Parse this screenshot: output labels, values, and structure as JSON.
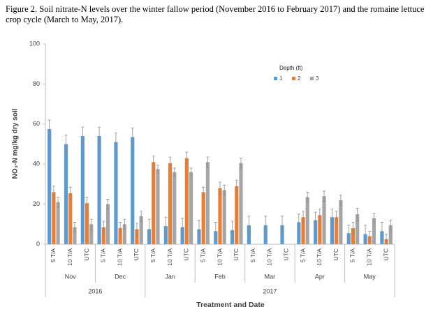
{
  "chart_data": {
    "type": "bar",
    "title": "Figure 2. Soil nitrate-N levels over the winter fallow period (November 2016 to February 2017) and the romaine lettuce crop cycle (March to May, 2017).",
    "x_label": "Treatment and Date",
    "y_label": "NO₃-N mg/kg dry soil",
    "legend_title": "Depth (ft)",
    "years": [
      {
        "label": "2016",
        "months": [
          {
            "label": "Nov",
            "categories": [
              "5 T/A",
              "10 T/A",
              "UTC"
            ]
          },
          {
            "label": "Dec",
            "categories": [
              "5 T/A",
              "10 T/A",
              "UTC"
            ]
          }
        ]
      },
      {
        "label": "2017",
        "months": [
          {
            "label": "Jan",
            "categories": [
              "5 T/A",
              "10 T/A",
              "UTC"
            ]
          },
          {
            "label": "Feb",
            "categories": [
              "5 T/A",
              "10 T/A",
              "UTC"
            ]
          },
          {
            "label": "Mar",
            "categories": [
              "5 T/A",
              "10 T/A",
              "UTC"
            ]
          },
          {
            "label": "Apr",
            "categories": [
              "5 T/A",
              "10 T/A",
              "UTC"
            ]
          },
          {
            "label": "May",
            "categories": [
              "5 T/A",
              "10 T/A",
              "UTC"
            ]
          }
        ]
      }
    ],
    "series": [
      {
        "name": "1",
        "color": "#5b9bd5",
        "values": [
          57.5,
          50,
          54,
          54,
          51,
          53.5,
          7.5,
          9,
          8.5,
          7.5,
          6.5,
          7,
          9.5,
          9.5,
          9.5,
          11,
          12,
          13.5,
          5.5,
          5,
          6.5
        ],
        "errors": [
          4.5,
          4.5,
          4.5,
          4.5,
          4.5,
          4.5,
          5,
          4.5,
          4.5,
          4.5,
          4.5,
          4.5,
          4.5,
          4.5,
          4.5,
          4,
          4,
          4,
          4,
          4.5,
          4.5
        ]
      },
      {
        "name": "2",
        "color": "#ed7d31",
        "values": [
          26,
          25.5,
          20.5,
          8.5,
          8,
          7.5,
          41,
          40.5,
          43,
          26,
          28,
          29,
          null,
          null,
          null,
          13.5,
          14.5,
          13.5,
          8,
          4,
          2.5
        ],
        "errors": [
          3,
          3,
          3,
          3,
          3,
          3,
          3,
          3,
          3,
          2.5,
          3,
          3,
          null,
          null,
          null,
          3,
          3,
          3,
          3,
          2.5,
          2.5
        ]
      },
      {
        "name": "3",
        "color": "#a5a5a5",
        "values": [
          21,
          8.5,
          10,
          20,
          10,
          14,
          37.5,
          36,
          36,
          41,
          27,
          40.5,
          null,
          null,
          null,
          23.5,
          24,
          22,
          15,
          13,
          9.5
        ],
        "errors": [
          2.5,
          2.5,
          2.5,
          2.5,
          2.5,
          2.5,
          2,
          2,
          2,
          2.5,
          2.5,
          2.5,
          null,
          null,
          null,
          2.5,
          2.5,
          2.5,
          3,
          2.5,
          2.5
        ]
      }
    ],
    "ylim": [
      0,
      100
    ],
    "yticks": [
      0,
      20,
      40,
      60,
      80,
      100
    ],
    "grid": false
  }
}
